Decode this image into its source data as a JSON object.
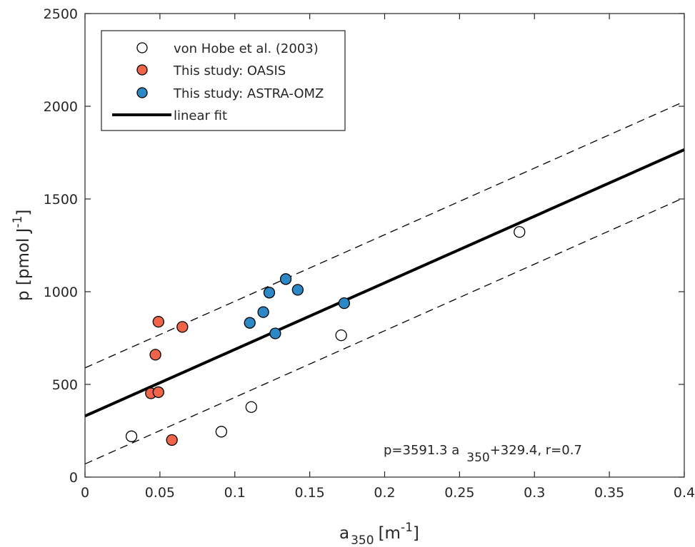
{
  "chart_data": {
    "type": "scatter",
    "xlabel": {
      "base": "a",
      "sub": "350",
      "unit_pre": "[m",
      "unit_sup": "-1",
      "unit_post": "]"
    },
    "ylabel": {
      "text_pre": "p [pmol J",
      "unit_sup": "-1",
      "text_post": "]"
    },
    "xlim": [
      0,
      0.4
    ],
    "ylim": [
      0,
      2500
    ],
    "x_ticks": [
      0,
      0.05,
      0.1,
      0.15,
      0.2,
      0.25,
      0.3,
      0.35,
      0.4
    ],
    "x_tick_labels": [
      "0",
      "0.05",
      "0.1",
      "0.15",
      "0.2",
      "0.25",
      "0.3",
      "0.35",
      "0.4"
    ],
    "y_ticks": [
      0,
      500,
      1000,
      1500,
      2000,
      2500
    ],
    "y_tick_labels": [
      "0",
      "500",
      "1000",
      "1500",
      "2000",
      "2500"
    ],
    "grid": false,
    "legend_position": "top-left",
    "series": [
      {
        "name": "von Hobe et al. (2003)",
        "color": "#ffffff",
        "points": [
          {
            "x": 0.031,
            "y": 220
          },
          {
            "x": 0.091,
            "y": 245
          },
          {
            "x": 0.111,
            "y": 378
          },
          {
            "x": 0.171,
            "y": 765
          },
          {
            "x": 0.29,
            "y": 1322
          }
        ]
      },
      {
        "name": "This study: OASIS",
        "color": "#f0654a",
        "points": [
          {
            "x": 0.044,
            "y": 452
          },
          {
            "x": 0.049,
            "y": 458
          },
          {
            "x": 0.047,
            "y": 660
          },
          {
            "x": 0.049,
            "y": 838
          },
          {
            "x": 0.058,
            "y": 200
          },
          {
            "x": 0.065,
            "y": 810
          }
        ]
      },
      {
        "name": "This study: ASTRA-OMZ",
        "color": "#2d89c6",
        "points": [
          {
            "x": 0.11,
            "y": 832
          },
          {
            "x": 0.119,
            "y": 890
          },
          {
            "x": 0.123,
            "y": 995
          },
          {
            "x": 0.127,
            "y": 775
          },
          {
            "x": 0.134,
            "y": 1068
          },
          {
            "x": 0.142,
            "y": 1010
          },
          {
            "x": 0.173,
            "y": 938
          }
        ]
      }
    ],
    "fit": {
      "name": "linear fit",
      "slope": 3591.3,
      "intercept": 329.4,
      "upper_intercept": 589,
      "lower_intercept": 71
    },
    "annotation": {
      "pre": "p=3591.3 a",
      "sub": "350",
      "post": "+329.4, r=0.7",
      "x": 0.2,
      "y": 160
    }
  }
}
